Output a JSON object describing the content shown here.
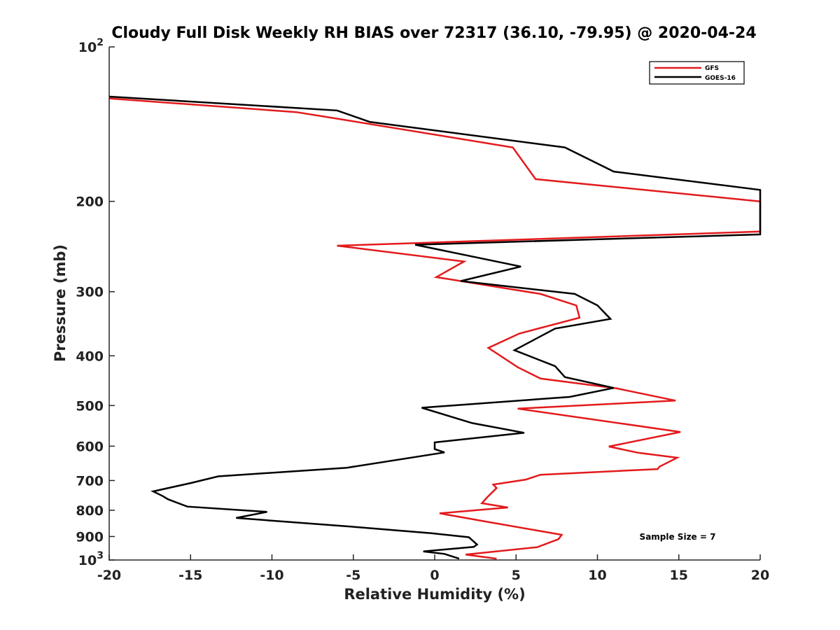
{
  "chart_data": {
    "type": "line",
    "title": "Cloudy Full Disk Weekly RH BIAS over 72317 (36.10, -79.95) @ 2020-04-24",
    "xlabel": "Relative Humidity (%)",
    "ylabel": "Pressure (mb)",
    "xlim": [
      -20,
      20
    ],
    "ylim": [
      1000,
      100
    ],
    "yscale": "log",
    "grid": false,
    "legend_position": "top-right",
    "x_ticks": [
      "-20",
      "-15",
      "-10",
      "-5",
      "0",
      "5",
      "10",
      "15",
      "20"
    ],
    "y_ticks": [
      {
        "value": 100,
        "base": "10",
        "exp": "2"
      },
      {
        "value": 200,
        "label": "200"
      },
      {
        "value": 300,
        "label": "300"
      },
      {
        "value": 400,
        "label": "400"
      },
      {
        "value": 500,
        "label": "500"
      },
      {
        "value": 600,
        "label": "600"
      },
      {
        "value": 700,
        "label": "700"
      },
      {
        "value": 800,
        "label": "800"
      },
      {
        "value": 900,
        "label": "900"
      },
      {
        "value": 1000,
        "base": "10",
        "exp": "3"
      }
    ],
    "annotation": "Sample Size = 7",
    "series": [
      {
        "name": "GFS",
        "color": "#e31a1c",
        "points": [
          [
            -20,
            126
          ],
          [
            -8.5,
            134
          ],
          [
            -6,
            138
          ],
          [
            4.8,
            157
          ],
          [
            6.2,
            181
          ],
          [
            20,
            200
          ],
          [
            20,
            229
          ],
          [
            -6,
            244
          ],
          [
            1.8,
            262
          ],
          [
            0.1,
            281
          ],
          [
            6.5,
            303
          ],
          [
            8.7,
            319
          ],
          [
            8.9,
            337
          ],
          [
            5.2,
            362
          ],
          [
            3.3,
            386
          ],
          [
            5.1,
            421
          ],
          [
            6.5,
            443
          ],
          [
            11.2,
            463
          ],
          [
            14.8,
            489
          ],
          [
            5.1,
            507
          ],
          [
            15.1,
            563
          ],
          [
            10.7,
            601
          ],
          [
            12.5,
            618
          ],
          [
            14.9,
            632
          ],
          [
            13.8,
            658
          ],
          [
            13.7,
            665
          ],
          [
            6.5,
            682
          ],
          [
            5.6,
            697
          ],
          [
            3.6,
            713
          ],
          [
            3.8,
            724
          ],
          [
            3.2,
            756
          ],
          [
            2.9,
            775
          ],
          [
            4.5,
            790
          ],
          [
            0.3,
            811
          ],
          [
            3.0,
            840
          ],
          [
            7.8,
            893
          ],
          [
            7.6,
            911
          ],
          [
            6.3,
            944
          ],
          [
            1.9,
            976
          ],
          [
            3.8,
            994
          ]
        ]
      },
      {
        "name": "GOES-16",
        "color": "#000000",
        "points": [
          [
            -20,
            125
          ],
          [
            -6,
            133
          ],
          [
            -4,
            140
          ],
          [
            8,
            157
          ],
          [
            11,
            175
          ],
          [
            20,
            190
          ],
          [
            20,
            232
          ],
          [
            -1.2,
            243
          ],
          [
            5.3,
            268
          ],
          [
            1.6,
            286
          ],
          [
            8.6,
            303
          ],
          [
            10,
            319
          ],
          [
            10.8,
            339
          ],
          [
            7.4,
            354
          ],
          [
            4.9,
            390
          ],
          [
            7.4,
            419
          ],
          [
            8,
            440
          ],
          [
            11,
            462
          ],
          [
            8.3,
            481
          ],
          [
            -0.8,
            505
          ],
          [
            2.3,
            541
          ],
          [
            5.5,
            565
          ],
          [
            0,
            590
          ],
          [
            0,
            608
          ],
          [
            0.6,
            617
          ],
          [
            -5.4,
            661
          ],
          [
            -13.3,
            687
          ],
          [
            -15,
            708
          ],
          [
            -17.3,
            735
          ],
          [
            -16.7,
            751
          ],
          [
            -16.4,
            761
          ],
          [
            -15.2,
            787
          ],
          [
            -10.3,
            806
          ],
          [
            -12.2,
            828
          ],
          [
            -5.1,
            861
          ],
          [
            -0.2,
            887
          ],
          [
            2.1,
            903
          ],
          [
            2.6,
            933
          ],
          [
            2.4,
            943
          ],
          [
            -0.7,
            962
          ],
          [
            0.6,
            973
          ],
          [
            1.5,
            994
          ]
        ]
      }
    ]
  }
}
